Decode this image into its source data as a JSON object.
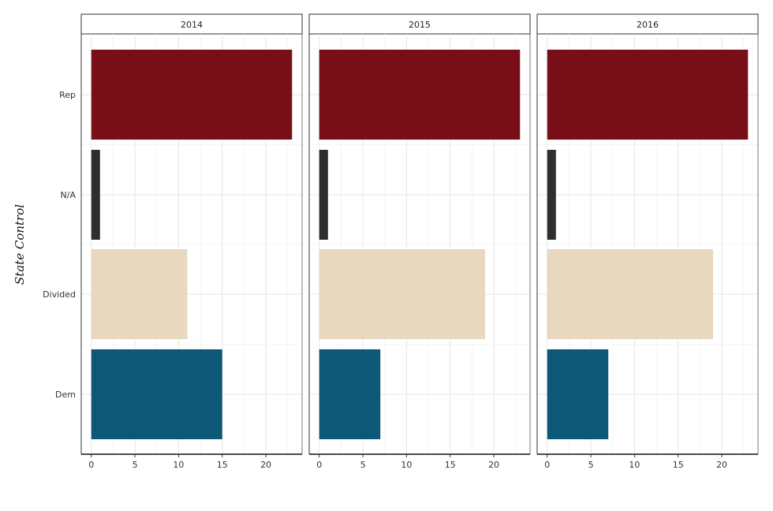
{
  "chart_data": {
    "type": "bar",
    "orientation": "horizontal",
    "facets": [
      "2014",
      "2015",
      "2016"
    ],
    "categories": [
      "Rep",
      "N/A",
      "Divided",
      "Dem"
    ],
    "colors": {
      "Rep": "#780f18",
      "N/A": "#2e2e2e",
      "Divided": "#e8d8c0",
      "Dem": "#0e5877"
    },
    "values": {
      "2014": [
        23,
        1,
        11,
        15
      ],
      "2015": [
        23,
        1,
        19,
        7
      ],
      "2016": [
        23,
        1,
        19,
        7
      ]
    },
    "xticks": [
      0,
      5,
      10,
      15,
      20
    ],
    "xlim": [
      -1.15,
      24.15
    ],
    "xlabel": "",
    "ylabel": "State Control",
    "grid": true,
    "legend": "none"
  }
}
